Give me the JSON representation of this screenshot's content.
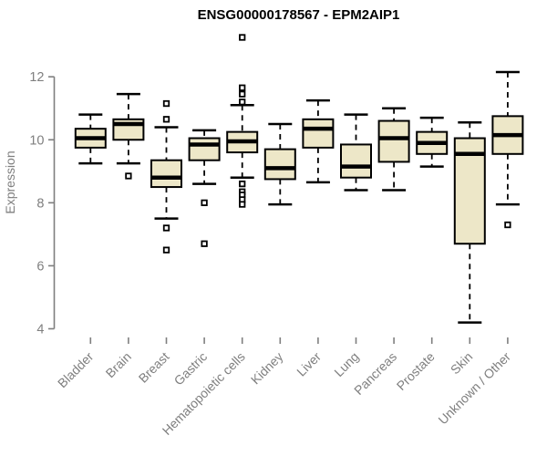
{
  "title": "ENSG00000178567 - EPM2AIP1",
  "colors": {
    "background": "#ffffff",
    "box_fill": "#ede7c8",
    "box_stroke": "#000000",
    "median": "#000000",
    "whisker": "#000000",
    "outlier_fill": "#ffffff",
    "axis": "#7f7f7f",
    "label_gray": "#7f7f7f",
    "title_color": "#000000"
  },
  "chart_data": {
    "type": "boxplot",
    "title": "ENSG00000178567 - EPM2AIP1",
    "xlabel": "",
    "ylabel": "Expression",
    "ylim": [
      4,
      12
    ],
    "yticks": [
      4,
      6,
      8,
      10,
      12
    ],
    "grid": false,
    "legend": null,
    "categories": [
      "Bladder",
      "Brain",
      "Breast",
      "Gastric",
      "Hematopoietic cells",
      "Kidney",
      "Liver",
      "Lung",
      "Pancreas",
      "Prostate",
      "Skin",
      "Unknown / Other"
    ],
    "series": [
      {
        "category": "Bladder",
        "whisker_low": 9.25,
        "q1": 9.75,
        "median": 10.05,
        "q3": 10.35,
        "whisker_high": 10.8,
        "outliers": []
      },
      {
        "category": "Brain",
        "whisker_low": 9.25,
        "q1": 10.0,
        "median": 10.5,
        "q3": 10.65,
        "whisker_high": 11.45,
        "outliers": [
          8.85
        ]
      },
      {
        "category": "Breast",
        "whisker_low": 7.5,
        "q1": 8.5,
        "median": 8.8,
        "q3": 9.35,
        "whisker_high": 10.4,
        "outliers": [
          11.15,
          10.65,
          7.2,
          6.5
        ]
      },
      {
        "category": "Gastric",
        "whisker_low": 8.6,
        "q1": 9.35,
        "median": 9.85,
        "q3": 10.05,
        "whisker_high": 10.3,
        "outliers": [
          8.0,
          6.7
        ]
      },
      {
        "category": "Hematopoietic cells",
        "whisker_low": 8.8,
        "q1": 9.6,
        "median": 9.95,
        "q3": 10.25,
        "whisker_high": 11.1,
        "outliers": [
          13.25,
          11.65,
          11.45,
          11.2,
          8.6,
          8.35,
          8.25,
          8.1,
          7.95
        ]
      },
      {
        "category": "Kidney",
        "whisker_low": 7.95,
        "q1": 8.75,
        "median": 9.1,
        "q3": 9.7,
        "whisker_high": 10.5,
        "outliers": []
      },
      {
        "category": "Liver",
        "whisker_low": 8.65,
        "q1": 9.75,
        "median": 10.35,
        "q3": 10.65,
        "whisker_high": 11.25,
        "outliers": []
      },
      {
        "category": "Lung",
        "whisker_low": 8.4,
        "q1": 8.8,
        "median": 9.15,
        "q3": 9.85,
        "whisker_high": 10.8,
        "outliers": []
      },
      {
        "category": "Pancreas",
        "whisker_low": 8.4,
        "q1": 9.3,
        "median": 10.05,
        "q3": 10.6,
        "whisker_high": 11.0,
        "outliers": []
      },
      {
        "category": "Prostate",
        "whisker_low": 9.15,
        "q1": 9.55,
        "median": 9.9,
        "q3": 10.25,
        "whisker_high": 10.7,
        "outliers": []
      },
      {
        "category": "Skin",
        "whisker_low": 4.2,
        "q1": 6.7,
        "median": 9.55,
        "q3": 10.05,
        "whisker_high": 10.55,
        "outliers": []
      },
      {
        "category": "Unknown / Other",
        "whisker_low": 7.95,
        "q1": 9.55,
        "median": 10.15,
        "q3": 10.75,
        "whisker_high": 12.15,
        "outliers": [
          7.3
        ]
      }
    ]
  }
}
